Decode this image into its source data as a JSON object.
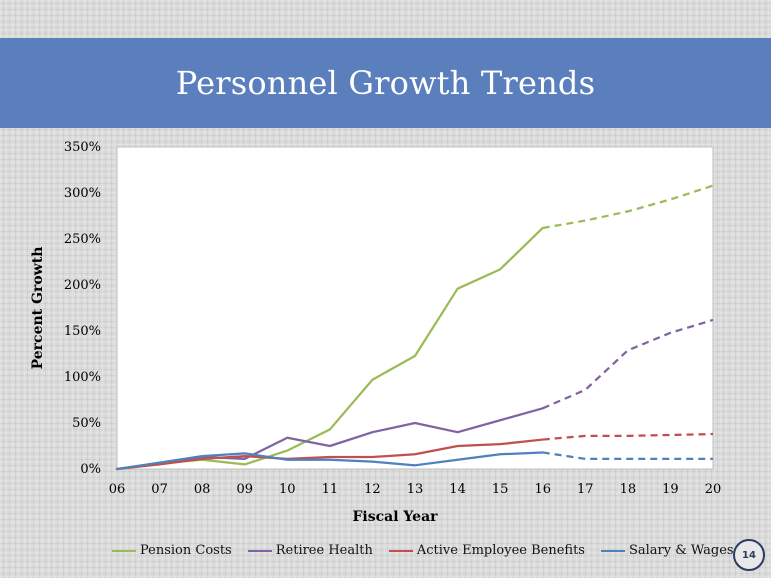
{
  "slide": {
    "title": "Personnel Growth Trends",
    "page_number": "14"
  },
  "chart_data": {
    "type": "line",
    "xlabel": "Fiscal Year",
    "ylabel": "Percent Growth",
    "categories": [
      "06",
      "07",
      "08",
      "09",
      "10",
      "11",
      "12",
      "13",
      "14",
      "15",
      "16",
      "17",
      "18",
      "19",
      "20"
    ],
    "ylim": [
      0,
      350
    ],
    "yticks": [
      0,
      50,
      100,
      150,
      200,
      250,
      300,
      350
    ],
    "ytick_labels": [
      "0%",
      "50%",
      "100%",
      "150%",
      "200%",
      "250%",
      "300%",
      "350%"
    ],
    "grid": false,
    "legend_position": "bottom",
    "projection_starts_at": "16",
    "projection_style": "dashed",
    "series": [
      {
        "name": "Pension Costs",
        "color": "#9bbb59",
        "values": [
          0,
          6,
          10,
          5,
          20,
          43,
          97,
          123,
          196,
          217,
          262,
          270,
          280,
          293,
          308
        ]
      },
      {
        "name": "Retiree Health",
        "color": "#8064a2",
        "values": [
          0,
          6,
          13,
          11,
          34,
          25,
          40,
          50,
          40,
          53,
          66,
          86,
          129,
          148,
          162
        ]
      },
      {
        "name": "Active Employee Benefits",
        "color": "#c0504d",
        "values": [
          0,
          5,
          11,
          14,
          11,
          13,
          13,
          16,
          25,
          27,
          32,
          36,
          36,
          37,
          38
        ]
      },
      {
        "name": "Salary & Wages",
        "color": "#4f81bd",
        "values": [
          0,
          7,
          14,
          17,
          10,
          10,
          8,
          4,
          10,
          16,
          18,
          11,
          11,
          11,
          11
        ]
      }
    ]
  }
}
